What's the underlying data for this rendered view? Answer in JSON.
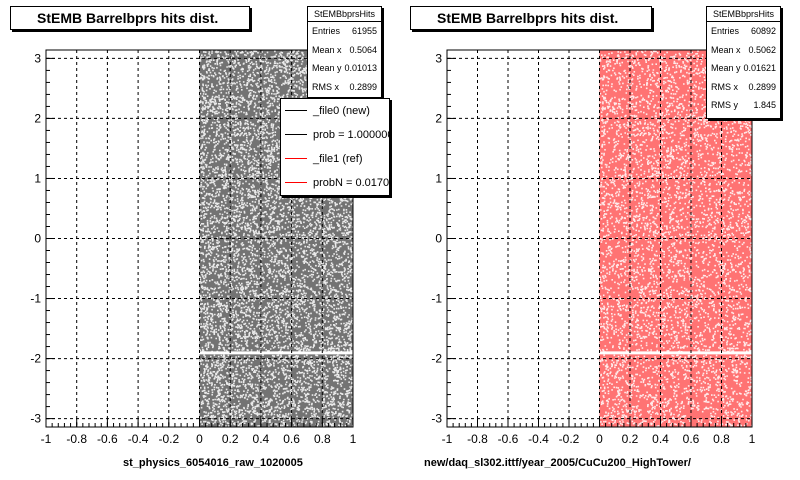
{
  "chart_data": [
    {
      "type": "scatter",
      "title": "StEMB Barrelbprs hits dist.",
      "xlabel": "st_physics_6054016_raw_1020005",
      "ylabel": "",
      "xlim": [
        -1,
        1
      ],
      "ylim": [
        -3.14,
        3.14
      ],
      "x_ticks": [
        "-1",
        "-0.8",
        "-0.6",
        "-0.4",
        "-0.2",
        "0",
        "0.2",
        "0.4",
        "0.6",
        "0.8",
        "1"
      ],
      "y_ticks": [
        "-3",
        "-2",
        "-1",
        "0",
        "1",
        "2",
        "3"
      ],
      "grid": true,
      "marker_color": "#000000",
      "x_range_filled": [
        0,
        1
      ],
      "y_gap": [
        -1.93,
        -1.88
      ],
      "stats": {
        "name": "StEMBbprsHits",
        "rows": [
          {
            "label": "Entries",
            "value": "61955"
          },
          {
            "label": "Mean x",
            "value": "0.5064"
          },
          {
            "label": "Mean y",
            "value": "0.01013"
          },
          {
            "label": "RMS x",
            "value": "0.2899"
          }
        ]
      },
      "legend": {
        "placement": "top-right",
        "entries": [
          {
            "label": "_file0 (new)",
            "color": "#000000"
          },
          {
            "label": "prob = 1.000000",
            "color": "#000000"
          },
          {
            "label": "_file1 (ref)",
            "color": "#ff0000"
          },
          {
            "label": "probN = 0.017012",
            "color": "#ff0000"
          }
        ]
      }
    },
    {
      "type": "scatter",
      "title": "StEMB Barrelbprs hits dist.",
      "xlabel": "new/daq_sl302.ittf/year_2005/CuCu200_HighTower/",
      "ylabel": "",
      "xlim": [
        -1,
        1
      ],
      "ylim": [
        -3.14,
        3.14
      ],
      "x_ticks": [
        "-1",
        "-0.8",
        "-0.6",
        "-0.4",
        "-0.2",
        "0",
        "0.2",
        "0.4",
        "0.6",
        "0.8",
        "1"
      ],
      "y_ticks": [
        "-3",
        "-2",
        "-1",
        "0",
        "1",
        "2",
        "3"
      ],
      "grid": true,
      "marker_color": "#ff0000",
      "x_range_filled": [
        0,
        1
      ],
      "y_gap": [
        -1.93,
        -1.88
      ],
      "stats": {
        "name": "StEMBbprsHits",
        "rows": [
          {
            "label": "Entries",
            "value": "60892"
          },
          {
            "label": "Mean x",
            "value": "0.5062"
          },
          {
            "label": "Mean y",
            "value": "0.01621"
          },
          {
            "label": "RMS x",
            "value": "0.2899"
          },
          {
            "label": "RMS y",
            "value": "1.845"
          }
        ]
      }
    }
  ]
}
